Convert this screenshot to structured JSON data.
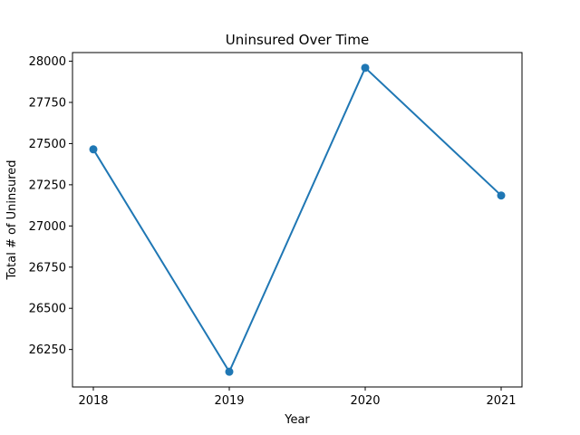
{
  "chart_data": {
    "type": "line",
    "title": "Uninsured Over Time",
    "xlabel": "Year",
    "ylabel": "Total # of Uninsured",
    "x": [
      "2018",
      "2019",
      "2020",
      "2021"
    ],
    "series": [
      {
        "values": [
          27465,
          26115,
          27960,
          27185
        ],
        "color": "#1f77b4",
        "marker": "circle"
      }
    ],
    "yticks": [
      26250,
      26500,
      26750,
      27000,
      27250,
      27500,
      27750,
      28000
    ],
    "ylim": [
      26022.5,
      28052.5
    ],
    "grid": false
  }
}
